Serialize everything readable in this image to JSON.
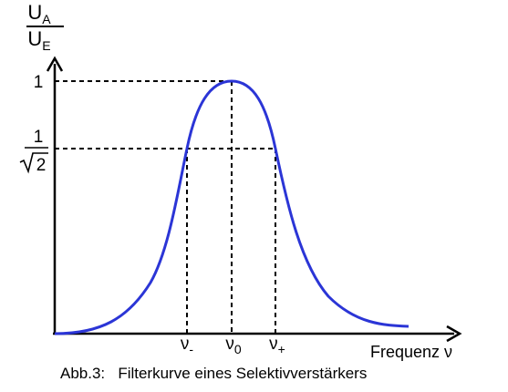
{
  "y_axis": {
    "ratio_numerator": "U",
    "ratio_numerator_sub": "A",
    "ratio_denominator": "U",
    "ratio_denominator_sub": "E",
    "tick_top": "1",
    "tick_mid_numerator": "1",
    "tick_mid_denominator": "2"
  },
  "x_axis": {
    "label": "Frequenz ν",
    "tick_left": "ν",
    "tick_left_sub": "-",
    "tick_center": "ν",
    "tick_center_sub": "0",
    "tick_right": "ν",
    "tick_right_sub": "+"
  },
  "caption": "Abb.3:   Filterkurve eines Selektivverstärkers",
  "colors": {
    "curve": "#2b35d6",
    "axes": "#000000",
    "guides": "#000000"
  }
}
